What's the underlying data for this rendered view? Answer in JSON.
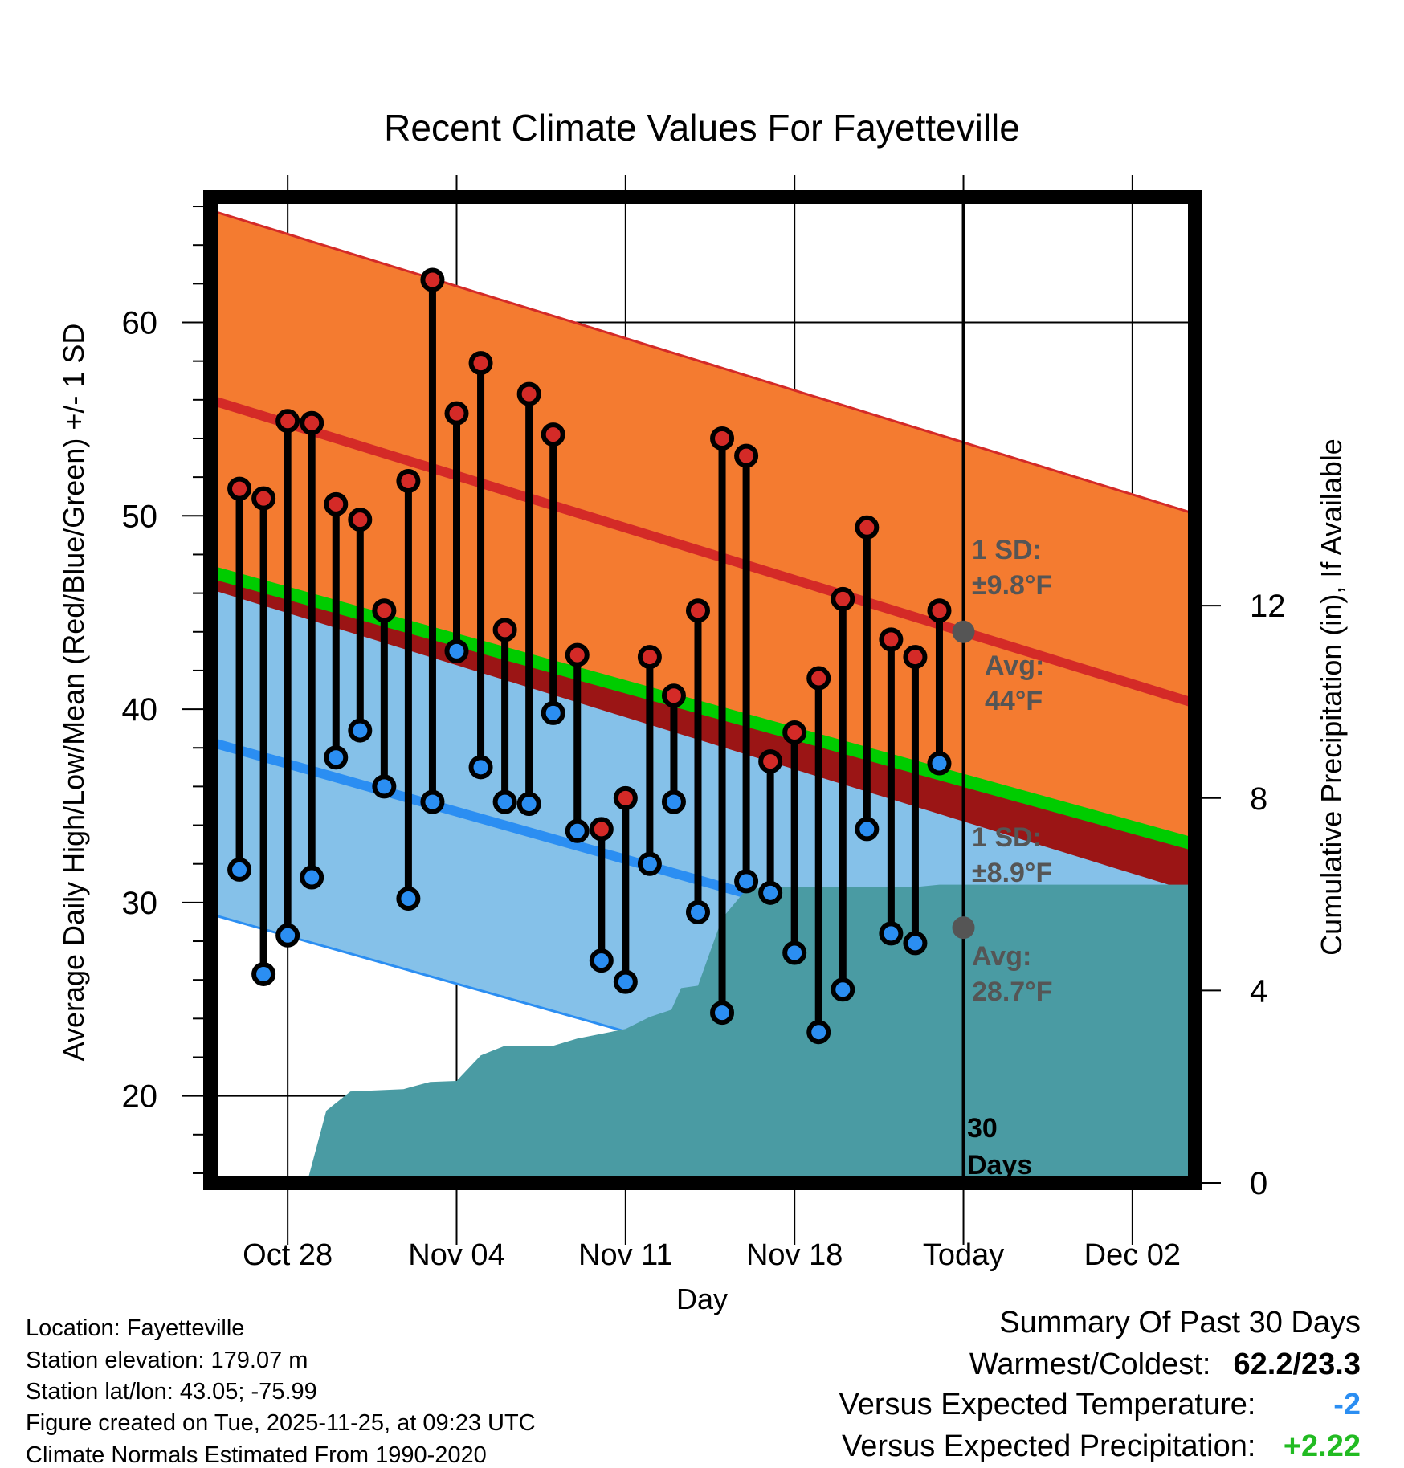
{
  "chart_data": {
    "type": "line",
    "title": "Recent Climate Values For Fayetteville",
    "xlabel": "Day",
    "ylabel": "Average Daily High/Low/Mean (Red/Blue/Green) +/- 1 SD",
    "y2label": "Cumulative Precipitation (in), If Available",
    "ylim": [
      15.5,
      66.5
    ],
    "y2lim": [
      0,
      20.5
    ],
    "xlim": [
      -3.2,
      37.6
    ],
    "yticks": [
      20,
      30,
      40,
      50,
      60
    ],
    "y2ticks": [
      0,
      4,
      8,
      12
    ],
    "xticks": [
      {
        "day": 0,
        "label": "Oct 28"
      },
      {
        "day": 7,
        "label": "Nov 04"
      },
      {
        "day": 14,
        "label": "Nov 11"
      },
      {
        "day": 21,
        "label": "Nov 18"
      },
      {
        "day": 28,
        "label": "Today"
      },
      {
        "day": 35,
        "label": "Dec 02"
      }
    ],
    "today_day": 28,
    "days": [
      -2,
      -1,
      0,
      1,
      2,
      3,
      4,
      5,
      6,
      7,
      8,
      9,
      10,
      11,
      12,
      13,
      14,
      15,
      16,
      17,
      18,
      19,
      20,
      21,
      22,
      23,
      24,
      25,
      26,
      27
    ],
    "highs": [
      51.4,
      50.9,
      54.9,
      54.8,
      50.6,
      49.8,
      45.1,
      51.8,
      62.2,
      55.3,
      57.9,
      44.1,
      56.3,
      54.2,
      42.8,
      33.8,
      35.4,
      42.7,
      40.7,
      45.1,
      54.0,
      53.1,
      37.3,
      38.8,
      41.6,
      45.7,
      49.4,
      43.6,
      42.7,
      45.1
    ],
    "lows": [
      31.7,
      26.3,
      28.3,
      31.3,
      37.5,
      38.9,
      36.0,
      30.2,
      35.2,
      43.0,
      37.0,
      35.2,
      35.1,
      39.8,
      33.7,
      27.0,
      25.9,
      32.0,
      35.2,
      29.5,
      24.3,
      31.1,
      30.5,
      27.4,
      23.3,
      25.5,
      33.8,
      28.4,
      27.9,
      37.2
    ],
    "normal_high": {
      "start": 56.0,
      "end": 40.3,
      "sd": 9.8
    },
    "normal_low": {
      "start": 38.3,
      "end": 23.9,
      "sd": 8.9
    },
    "normal_mean": {
      "start": 47.1,
      "end": 33.0
    },
    "precip_cumulative": [
      [
        0.8,
        0
      ],
      [
        1.6,
        1.5
      ],
      [
        2.6,
        1.9
      ],
      [
        4.8,
        1.95
      ],
      [
        5.9,
        2.1
      ],
      [
        7.0,
        2.12
      ],
      [
        8.0,
        2.65
      ],
      [
        9.0,
        2.85
      ],
      [
        11.0,
        2.85
      ],
      [
        12.0,
        3.0
      ],
      [
        14.0,
        3.2
      ],
      [
        15.0,
        3.45
      ],
      [
        15.9,
        3.6
      ],
      [
        16.3,
        4.05
      ],
      [
        17.0,
        4.1
      ],
      [
        18.0,
        5.5
      ],
      [
        19.0,
        6.1
      ],
      [
        20.0,
        6.15
      ],
      [
        26.0,
        6.15
      ],
      [
        27.0,
        6.2
      ],
      [
        37.6,
        6.2
      ]
    ],
    "avg_high_today": 44,
    "avg_low_today": 28.7,
    "annotations": {
      "high_sd_label": "1 SD:",
      "high_sd_value": "±9.8°F",
      "high_avg_label": "Avg:",
      "high_avg_value": "44°F",
      "low_sd_label": "1 SD:",
      "low_sd_value": "±8.9°F",
      "low_avg_label": "Avg:",
      "low_avg_value": "28.7°F",
      "days_number": "30",
      "days_word": "Days"
    },
    "colors": {
      "high_band": "#f47b30",
      "high_line": "#d42a27",
      "low_band": "#85c1e9",
      "low_line": "#2b8ef2",
      "mean_line": "#00cc00",
      "overlap": "#9b1515",
      "precip": "#4a9ba3",
      "high_marker": "#d42a27",
      "low_marker": "#2b8ef2",
      "annotation_text": "#555555",
      "avg_dot": "#555555"
    }
  },
  "info": {
    "location": "Location: Fayetteville",
    "elevation": "Station elevation: 179.07 m",
    "latlon": "Station lat/lon: 43.05; -75.99",
    "created": "Figure created on Tue, 2025-11-25, at 09:23 UTC",
    "normals": "Climate Normals Estimated From 1990-2020"
  },
  "summary": {
    "title": "Summary Of Past 30 Days",
    "warmest_label": "Warmest/Coldest:",
    "warmest_value": "62.2/23.3",
    "temp_label": "Versus Expected Temperature:",
    "temp_value": "-2",
    "temp_color": "#2b8ef2",
    "precip_label": "Versus Expected Precipitation:",
    "precip_value": "+2.22",
    "precip_color": "#22bb22"
  }
}
